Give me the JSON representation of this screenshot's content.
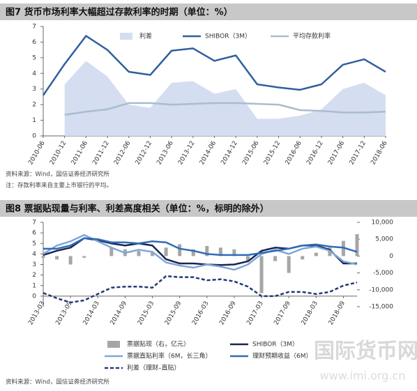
{
  "chart_data": [
    {
      "type": "line",
      "title": "图7  货币市场利率大幅超过存款利率的时期（单位：%）",
      "categories": [
        "2010-06",
        "2010-12",
        "2011-06",
        "2011-12",
        "2012-06",
        "2012-12",
        "2013-06",
        "2013-12",
        "2014-06",
        "2014-12",
        "2015-06",
        "2015-12",
        "2016-06",
        "2016-12",
        "2017-06",
        "2017-12",
        "2018-06"
      ],
      "series": [
        {
          "name": "利差",
          "kind": "area",
          "color": "#d5def0",
          "values": [
            null,
            3.3,
            4.8,
            3.8,
            2.0,
            1.8,
            3.4,
            3.5,
            2.7,
            3.0,
            1.1,
            1.1,
            1.3,
            1.7,
            3.0,
            3.4,
            2.6
          ]
        },
        {
          "name": "SHIBOR（3M）",
          "kind": "line",
          "color": "#2e5f9e",
          "values": [
            2.6,
            4.6,
            6.4,
            5.5,
            4.1,
            3.9,
            5.45,
            5.6,
            4.8,
            5.15,
            3.3,
            3.1,
            2.95,
            3.3,
            4.55,
            4.9,
            4.1
          ]
        },
        {
          "name": "平均存款利率",
          "kind": "line",
          "color": "#a9bcd0",
          "values": [
            null,
            1.35,
            1.55,
            1.7,
            2.1,
            2.1,
            2.0,
            2.05,
            2.1,
            2.1,
            2.05,
            2.0,
            1.65,
            1.6,
            1.5,
            1.5,
            1.55
          ]
        }
      ],
      "ylim": [
        0,
        7
      ],
      "yticks": [
        0,
        1,
        2,
        3,
        4,
        5,
        6,
        7
      ],
      "notes": [
        "资料来源：Wind，国信证券经济研究所",
        "注：存款利率来自主要上市银行的平均。"
      ]
    },
    {
      "type": "combo",
      "title": "图8  票据贴现量与利率、利差高度相关（单位：%，标明的除外）",
      "categories": [
        "2013-03",
        null,
        "2013-09",
        null,
        "2014-03",
        null,
        "2014-09",
        null,
        "2015-03",
        null,
        "2015-09",
        null,
        "2016-03",
        null,
        "2016-09",
        null,
        "2017-03",
        null,
        "2017-09",
        null,
        "2018-03",
        null,
        "2018-09",
        null
      ],
      "series": [
        {
          "name": "票据贴现（右，亿元）",
          "kind": "bar",
          "axis": "y2",
          "color": "#a6a6a6",
          "values": [
            -500,
            -1000,
            -2500,
            -500,
            0,
            2500,
            2000,
            1500,
            1000,
            2500,
            3500,
            2000,
            3000,
            2500,
            2000,
            -1500,
            -11000,
            -1500,
            -5000,
            -1000,
            1000,
            2500,
            4500,
            6500
          ]
        },
        {
          "name": "SHIBOR（3M）",
          "kind": "line",
          "color": "#1a2550",
          "values": [
            3.9,
            4.3,
            4.6,
            5.5,
            5.3,
            5.0,
            4.8,
            5.0,
            4.8,
            3.5,
            3.1,
            3.1,
            3.0,
            2.95,
            3.0,
            3.3,
            4.3,
            4.6,
            4.5,
            4.8,
            4.8,
            4.4,
            3.1,
            3.1
          ]
        },
        {
          "name": "票据直贴利率（6M，长三角）",
          "kind": "line",
          "color": "#7ea6d8",
          "values": [
            4.0,
            4.8,
            5.2,
            5.8,
            5.2,
            4.6,
            4.1,
            4.4,
            4.2,
            3.2,
            2.9,
            2.7,
            3.0,
            2.8,
            2.5,
            3.0,
            4.0,
            4.4,
            4.0,
            4.5,
            4.7,
            4.3,
            3.3,
            3.0
          ]
        },
        {
          "name": "理财预期收益（6M）",
          "kind": "line",
          "color": "#2f6db5",
          "values": [
            4.5,
            4.5,
            4.8,
            5.5,
            5.4,
            5.1,
            5.1,
            5.0,
            5.2,
            5.1,
            4.5,
            4.3,
            4.0,
            3.9,
            3.9,
            3.9,
            4.1,
            4.3,
            4.5,
            4.8,
            4.9,
            4.7,
            4.6,
            4.2
          ]
        },
        {
          "name": "利差（理财–直贴）",
          "kind": "line",
          "style": "dashed",
          "color": "#1f3a78",
          "values": [
            0.3,
            -0.2,
            -0.6,
            -0.4,
            0.2,
            0.8,
            0.9,
            0.9,
            0.8,
            1.9,
            1.8,
            1.8,
            1.5,
            1.6,
            1.4,
            0.9,
            0.0,
            0.0,
            0.4,
            0.4,
            0.2,
            0.4,
            1.0,
            1.3
          ]
        }
      ],
      "ylim": [
        -1,
        7
      ],
      "yticks": [
        0,
        1,
        2,
        3,
        4,
        5,
        6,
        7
      ],
      "y2lim": [
        -15000,
        10000
      ],
      "y2ticks": [
        {
          "value": 10000,
          "label": "10,000"
        },
        {
          "value": 5000,
          "label": "5,000"
        },
        0,
        {
          "value": -5000,
          "label": "-5,000"
        },
        {
          "value": -10000,
          "label": "-10,000"
        },
        {
          "value": -15000,
          "label": "-15,000"
        }
      ],
      "notes": [
        "资料来源：Wind，国信证券经济研究所"
      ]
    }
  ],
  "watermark": {
    "text": "国际货币网",
    "url": "www.imi.org.cn"
  }
}
